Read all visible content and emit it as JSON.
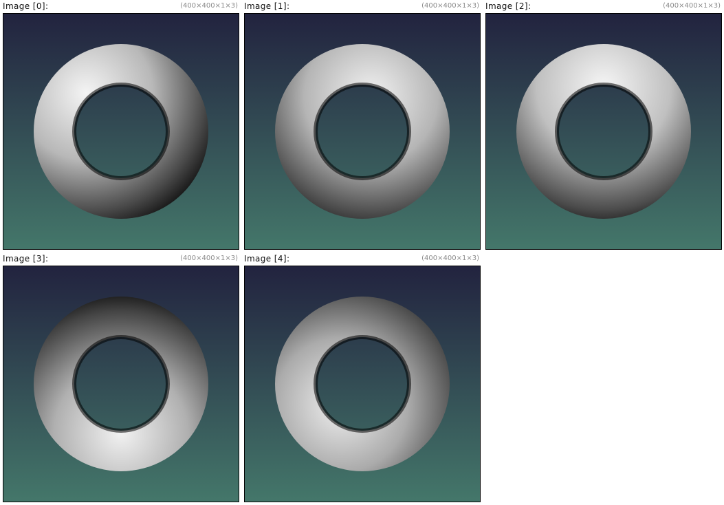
{
  "background_gradient": {
    "top": "#22233f",
    "bottom": "#44776a"
  },
  "images": [
    {
      "title": "Image [0]:",
      "dims": "(400×400×1×3)",
      "subject": "torus",
      "highlight": "upper-left"
    },
    {
      "title": "Image [1]:",
      "dims": "(400×400×1×3)",
      "subject": "torus",
      "highlight": "upper-right"
    },
    {
      "title": "Image [2]:",
      "dims": "(400×400×1×3)",
      "subject": "torus",
      "highlight": "top"
    },
    {
      "title": "Image [3]:",
      "dims": "(400×400×1×3)",
      "subject": "torus",
      "highlight": "bottom"
    },
    {
      "title": "Image [4]:",
      "dims": "(400×400×1×3)",
      "subject": "torus",
      "highlight": "lower-left"
    }
  ]
}
